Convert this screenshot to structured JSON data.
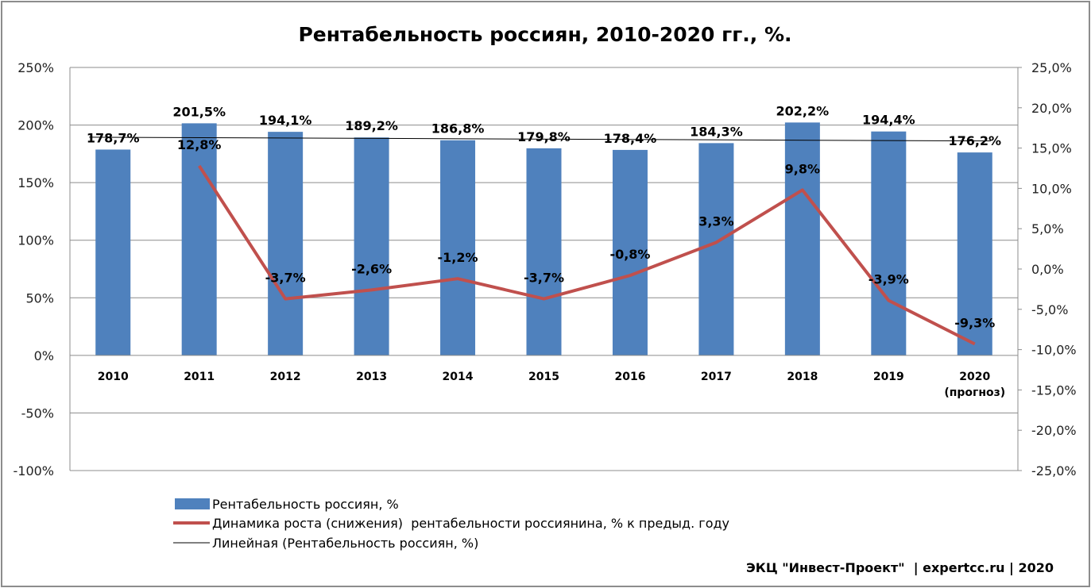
{
  "chart_data": {
    "type": "bar",
    "title": "Рентабельность россиян, 2010-2020 гг., %.",
    "categories": [
      "2010",
      "2011",
      "2012",
      "2013",
      "2014",
      "2015",
      "2016",
      "2017",
      "2018",
      "2019",
      "2020"
    ],
    "category_sublabels": {
      "2020": "(прогноз)"
    },
    "y_left": {
      "min": -100,
      "max": 250,
      "step": 50,
      "ticks": [
        "-100%",
        "-50%",
        "0%",
        "50%",
        "100%",
        "150%",
        "200%",
        "250%"
      ]
    },
    "y_right": {
      "min": -25,
      "max": 25,
      "step": 5,
      "ticks": [
        "-25,0%",
        "-20,0%",
        "-15,0%",
        "-10,0%",
        "-5,0%",
        "0,0%",
        "5,0%",
        "10,0%",
        "15,0%",
        "20,0%",
        "25,0%"
      ]
    },
    "grid": true,
    "legend_position": "bottom",
    "series": [
      {
        "name": "Рентабельность россиян, %",
        "type": "bar",
        "axis": "left",
        "color": "#4f81bd",
        "values": [
          178.7,
          201.5,
          194.1,
          189.2,
          186.8,
          179.8,
          178.4,
          184.3,
          202.2,
          194.4,
          176.2
        ],
        "labels": [
          "178,7%",
          "201,5%",
          "194,1%",
          "189,2%",
          "186,8%",
          "179,8%",
          "178,4%",
          "184,3%",
          "202,2%",
          "194,4%",
          "176,2%"
        ]
      },
      {
        "name": "Динамика роста (снижения)  рентабельности россиянина, % к предыд. году",
        "type": "line",
        "axis": "right",
        "color": "#c0504d",
        "values": [
          null,
          12.8,
          -3.7,
          -2.6,
          -1.2,
          -3.7,
          -0.8,
          3.3,
          9.8,
          -3.9,
          -9.3
        ],
        "labels": [
          "",
          "12,8%",
          "-3,7%",
          "-2,6%",
          "-1,2%",
          "-3,7%",
          "-0,8%",
          "3,3%",
          "9,8%",
          "-3,9%",
          "-9,3%"
        ]
      },
      {
        "name": "Линейная (Рентабельность россиян, %)",
        "type": "trendline",
        "axis": "left",
        "color": "#000000"
      }
    ]
  },
  "source": "ЭКЦ \"Инвест-Проект\"  | expertcc.ru | 2020"
}
